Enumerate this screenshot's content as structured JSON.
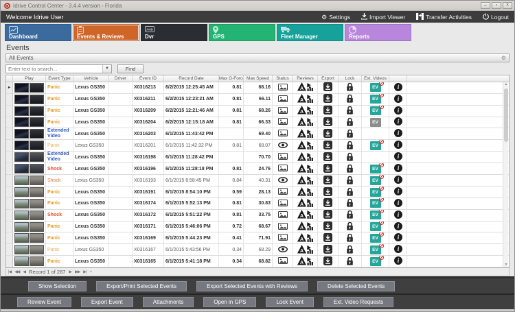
{
  "window": {
    "title": "Idrive Control Center - 3.4.4 version - Florida",
    "controls": {
      "minimize": "–",
      "maximize": "▫",
      "close": "×"
    }
  },
  "topbar": {
    "welcome": "Welcome Idrive User",
    "actions": [
      {
        "icon": "gear-icon",
        "label": "Settings"
      },
      {
        "icon": "download-icon",
        "label": "Import Viewer"
      },
      {
        "icon": "transfer-icon",
        "label": "Transfer Activities"
      },
      {
        "icon": "power-icon",
        "label": "Logout"
      }
    ]
  },
  "tabs": [
    {
      "label": "Dashboard",
      "color": "#3a6a9e",
      "icon": "line-chart-icon",
      "active": false
    },
    {
      "label": "Events & Reviews",
      "color": "#cf6528",
      "icon": "clipboard-icon",
      "active": true
    },
    {
      "label": "Dvr",
      "color": "#2a2d32",
      "icon": "dvr-icon",
      "active": false
    },
    {
      "label": "GPS",
      "color": "#23b473",
      "icon": "map-pin-icon",
      "active": false
    },
    {
      "label": "Fleet Manager",
      "color": "#16a29a",
      "icon": "truck-icon",
      "active": false
    },
    {
      "label": "Reports",
      "color": "#b886dd",
      "icon": "pie-chart-icon",
      "active": false
    }
  ],
  "page": {
    "title": "Events",
    "group_label": "All Events"
  },
  "search": {
    "placeholder": "Enter text to search...",
    "find_label": "Find"
  },
  "table": {
    "columns": [
      "Play",
      "Event Type",
      "Vehicle",
      "Driver",
      "Event ID",
      "Record Date",
      "Max G-Force",
      "Max Speed",
      "Status",
      "Reviews",
      "Export",
      "Lock",
      "Ext. Videos",
      ""
    ],
    "rows": [
      {
        "type": "Panic",
        "style": "panic",
        "vehicle": "Lexus GS350",
        "driver": "",
        "id": "X0316213",
        "date": "6/2/2015 12:25:45 AM",
        "g": "0.81",
        "speed": "68.16",
        "status": "new",
        "ev": "active",
        "scene": "night",
        "unread": true
      },
      {
        "type": "Panic",
        "style": "panic",
        "vehicle": "Lexus GS350",
        "driver": "",
        "id": "X0316211",
        "date": "6/2/2015 12:23:21 AM",
        "g": "0.81",
        "speed": "66.11",
        "status": "new",
        "ev": "active",
        "scene": "night",
        "unread": true
      },
      {
        "type": "Panic",
        "style": "panic",
        "vehicle": "Lexus GS350",
        "driver": "",
        "id": "X0316209",
        "date": "6/2/2015 12:21:46 AM",
        "g": "0.81",
        "speed": "68.26",
        "status": "new",
        "ev": "active",
        "scene": "night",
        "unread": true
      },
      {
        "type": "Panic",
        "style": "panic",
        "vehicle": "Lexus GS350",
        "driver": "",
        "id": "X0316204",
        "date": "6/2/2015 12:15:18 AM",
        "g": "0.81",
        "speed": "66.33",
        "status": "new",
        "ev": "done",
        "scene": "night",
        "unread": true
      },
      {
        "type": "Extended Video",
        "style": "ext",
        "vehicle": "Lexus GS350",
        "driver": "",
        "id": "X0316203",
        "date": "6/1/2015 11:43:42 PM",
        "g": "",
        "speed": "69.40",
        "status": "new",
        "ev": "none",
        "scene": "night",
        "unread": true
      },
      {
        "type": "Panic",
        "style": "panic",
        "vehicle": "Lexus GS350",
        "driver": "",
        "id": "X0316201",
        "date": "6/1/2015 11:42:32 PM",
        "g": "0.81",
        "speed": "68.07",
        "status": "viewed",
        "ev": "active",
        "scene": "night",
        "unread": false
      },
      {
        "type": "Extended Video",
        "style": "ext",
        "vehicle": "Lexus GS350",
        "driver": "",
        "id": "X0316198",
        "date": "6/1/2015 11:28:42 PM",
        "g": "",
        "speed": "70.70",
        "status": "new",
        "ev": "none",
        "scene": "dusk",
        "unread": true
      },
      {
        "type": "Shock",
        "style": "shock",
        "vehicle": "Lexus GS350",
        "driver": "",
        "id": "X0316196",
        "date": "6/1/2015 11:28:18 PM",
        "g": "0.81",
        "speed": "24.76",
        "status": "new",
        "ev": "active",
        "scene": "dusk",
        "unread": true
      },
      {
        "type": "Shock",
        "style": "shock",
        "vehicle": "Lexus GS350",
        "driver": "",
        "id": "X0316193",
        "date": "6/1/2015 8:58:45 PM",
        "g": "0.84",
        "speed": "40.31",
        "status": "viewed",
        "ev": "active",
        "scene": "day",
        "unread": false
      },
      {
        "type": "Panic",
        "style": "panic",
        "vehicle": "Lexus GS350",
        "driver": "",
        "id": "X0316191",
        "date": "6/1/2015 8:54:10 PM",
        "g": "0.59",
        "speed": "28.13",
        "status": "new",
        "ev": "active",
        "scene": "day",
        "unread": true
      },
      {
        "type": "Panic",
        "style": "panic",
        "vehicle": "Lexus GS350",
        "driver": "",
        "id": "X0316174",
        "date": "6/1/2015 5:52:13 PM",
        "g": "0.81",
        "speed": "30.83",
        "status": "new",
        "ev": "active",
        "scene": "day",
        "unread": true
      },
      {
        "type": "Shock",
        "style": "shock",
        "vehicle": "Lexus GS350",
        "driver": "",
        "id": "X0316172",
        "date": "6/1/2015 5:51:22 PM",
        "g": "0.81",
        "speed": "33.75",
        "status": "new",
        "ev": "active",
        "scene": "day",
        "unread": true
      },
      {
        "type": "Panic",
        "style": "panic",
        "vehicle": "Lexus GS350",
        "driver": "",
        "id": "X0316171",
        "date": "6/1/2015 5:46:06 PM",
        "g": "0.72",
        "speed": "68.67",
        "status": "new",
        "ev": "active",
        "scene": "day",
        "unread": true
      },
      {
        "type": "Panic",
        "style": "panic",
        "vehicle": "Lexus GS350",
        "driver": "",
        "id": "X0316169",
        "date": "6/1/2015 5:44:23 PM",
        "g": "0.41",
        "speed": "71.91",
        "status": "new",
        "ev": "active",
        "scene": "day",
        "unread": true
      },
      {
        "type": "Panic",
        "style": "panic",
        "vehicle": "Lexus GS350",
        "driver": "",
        "id": "X0316167",
        "date": "6/1/2015 5:43:56 PM",
        "g": "0.34",
        "speed": "68.29",
        "status": "viewed",
        "ev": "active",
        "scene": "day",
        "unread": false
      },
      {
        "type": "Panic",
        "style": "panic",
        "vehicle": "Lexus GS350",
        "driver": "",
        "id": "X0316165",
        "date": "6/1/2015 5:41:18 PM",
        "g": "0.34",
        "speed": "68.82",
        "status": "new",
        "ev": "active",
        "scene": "day",
        "unread": true
      }
    ],
    "ev_label": "EV"
  },
  "navigator": {
    "record_text": "Record 1 of 287"
  },
  "action_bars": {
    "row1": [
      "Show Selection",
      "Export/Print Selected Events",
      "Export Selected Events with Reviews",
      "Delete Selected  Events"
    ],
    "row2": [
      "Review Event",
      "Export Event",
      "Attachments",
      "Open in GPS",
      "Lock Event",
      "Ext. Video Requests"
    ]
  },
  "colors": {
    "ev_teal": "#26a69a",
    "band_dark": "#3f3f3f",
    "panic": "#e39c27",
    "shock": "#e04f2a",
    "extended": "#2c55c9"
  }
}
